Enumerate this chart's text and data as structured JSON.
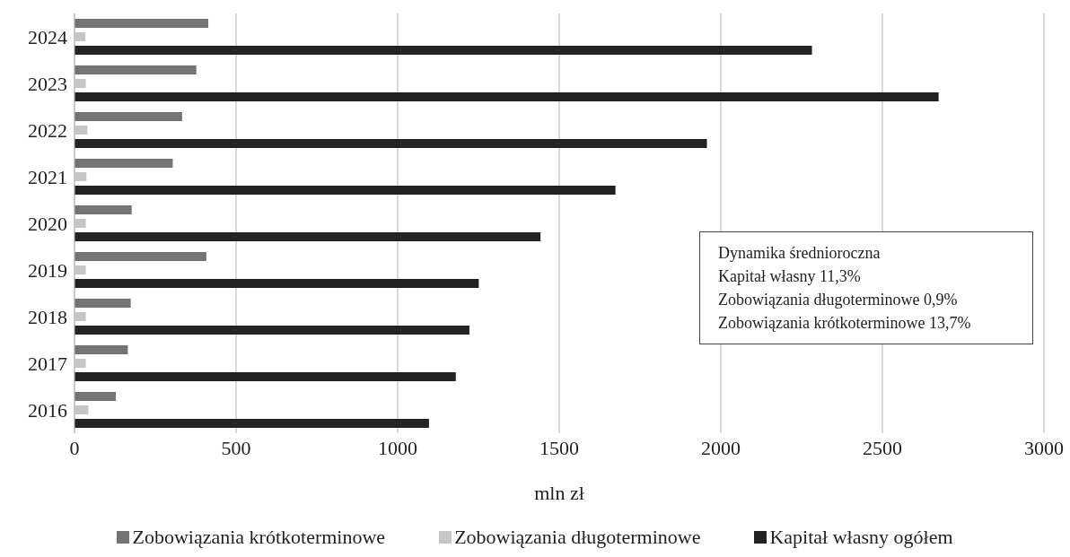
{
  "chart_data": {
    "type": "bar",
    "orientation": "horizontal",
    "xlabel": "mln zł",
    "categories": [
      "2024",
      "2023",
      "2022",
      "2021",
      "2020",
      "2019",
      "2018",
      "2017",
      "2016"
    ],
    "series": [
      {
        "name": "Zobowiązania krótkoterminowe",
        "color": "#737373",
        "values": [
          414,
          377,
          333,
          304,
          177,
          408,
          174,
          165,
          128
        ]
      },
      {
        "name": "Zobowiązania długoterminowe",
        "color": "#c6c6c6",
        "values": [
          34,
          35,
          40,
          37,
          35,
          35,
          35,
          35,
          43
        ]
      },
      {
        "name": "Kapitał własny ogółem",
        "color": "#222222",
        "values": [
          2282,
          2674,
          1957,
          1674,
          1442,
          1251,
          1222,
          1180,
          1097
        ]
      }
    ],
    "xlim": [
      0,
      3000
    ],
    "xticks": [
      0,
      500,
      1000,
      1500,
      2000,
      2500,
      3000
    ],
    "grid": "x",
    "legend": "bottom",
    "annotations": [
      "Dynamika  średnioroczna",
      "Kapitał własny 11,3%",
      "Zobowiązania długoterminowe  0,9%",
      "Zobowiązania krótkoterminowe 13,7%"
    ]
  }
}
